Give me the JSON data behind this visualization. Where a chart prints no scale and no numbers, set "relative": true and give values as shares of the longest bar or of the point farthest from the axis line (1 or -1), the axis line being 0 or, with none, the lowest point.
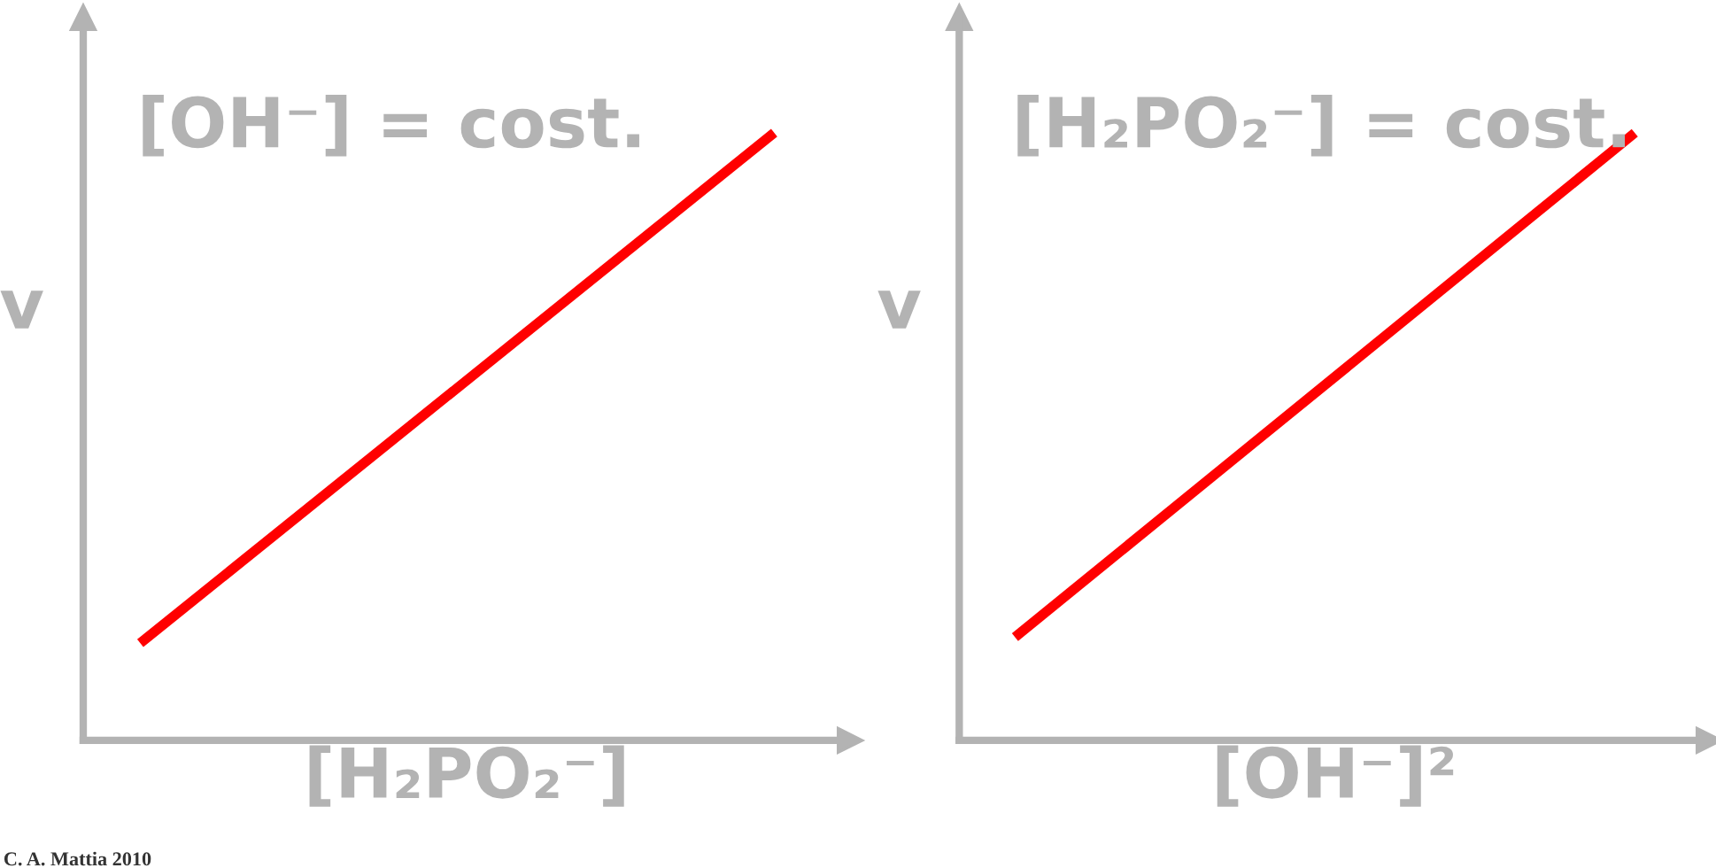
{
  "chart_data": [
    {
      "type": "line",
      "title": "[OH⁻] = cost.",
      "xlabel": "[H₂PO₂⁻]",
      "ylabel": "v",
      "categories": [
        null,
        null
      ],
      "relative": true,
      "series": [
        {
          "color": "#ff0000",
          "values": [
            0.16,
            1
          ]
        }
      ],
      "annotations": [
        "C. A. Mattia 2010"
      ],
      "grid": false,
      "legend": false,
      "tick_labels": false
    },
    {
      "type": "line",
      "title": "[H₂PO₂⁻] = cost.",
      "xlabel": "[OH⁻]²",
      "ylabel": "v",
      "categories": [
        null,
        null
      ],
      "relative": true,
      "series": [
        {
          "color": "#ff0000",
          "values": [
            0.17,
            1
          ]
        }
      ],
      "grid": false,
      "legend": false,
      "tick_labels": false
    }
  ]
}
